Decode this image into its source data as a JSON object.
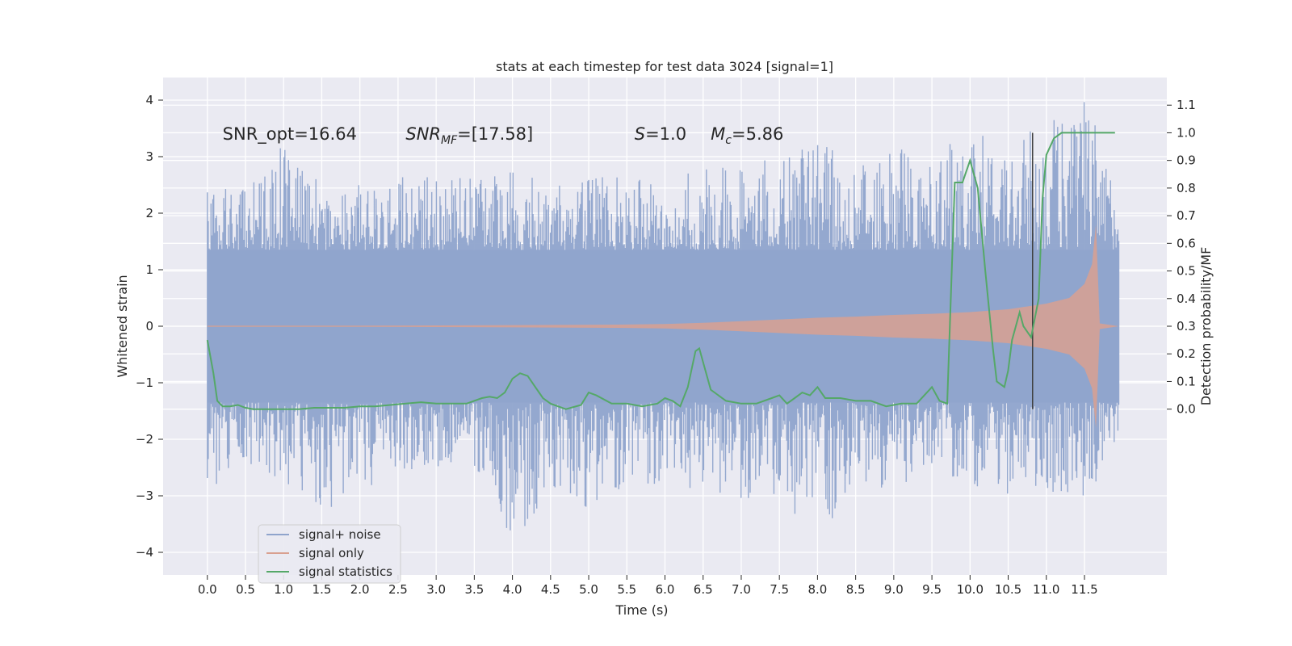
{
  "chart_data": {
    "type": "line",
    "title": "stats at each timestep for test data 3024 [signal=1]",
    "xlabel": "Time (s)",
    "ylabel_left": "Whitened strain",
    "ylabel_right": "Detection probability/MF",
    "xlim": [
      -0.58,
      12.58
    ],
    "ylim_left": [
      -4.4,
      4.4
    ],
    "ylim_right": [
      -0.6,
      1.2
    ],
    "x_ticks": [
      0.0,
      0.5,
      1.0,
      1.5,
      2.0,
      2.5,
      3.0,
      3.5,
      4.0,
      4.5,
      5.0,
      5.5,
      6.0,
      6.5,
      7.0,
      7.5,
      8.0,
      8.5,
      9.0,
      9.5,
      10.0,
      10.5,
      11.0,
      11.5
    ],
    "x_tick_labels": [
      "0.0",
      "0.5",
      "1.0",
      "1.5",
      "2.0",
      "2.5",
      "3.0",
      "3.5",
      "4.0",
      "4.5",
      "5.0",
      "5.5",
      "6.0",
      "6.5",
      "7.0",
      "7.5",
      "8.0",
      "8.5",
      "9.0",
      "9.5",
      "10.0",
      "10.5",
      "11.0",
      "11.5"
    ],
    "y_left_ticks": [
      4,
      3,
      2,
      1,
      0,
      -1,
      -2,
      -3,
      -4
    ],
    "y_left_tick_labels": [
      "4",
      "3",
      "2",
      "1",
      "0",
      "−1",
      "−2",
      "−3",
      "−4"
    ],
    "y_right_ticks": [
      1.1,
      1.0,
      0.9,
      0.8,
      0.7,
      0.6,
      0.5,
      0.4,
      0.3,
      0.2,
      0.1,
      0.0
    ],
    "y_right_tick_labels": [
      "1.1",
      "1.0",
      "0.9",
      "0.8",
      "0.7",
      "0.6",
      "0.5",
      "0.4",
      "0.3",
      "0.2",
      "0.1",
      "0.0"
    ],
    "annotations": [
      {
        "text": "SNR_opt=16.64",
        "x": 0.2,
        "y": 3.3
      },
      {
        "text": "SNR_MF=[17.58]",
        "x": 2.6,
        "y": 3.3
      },
      {
        "text": "S=1.0",
        "x": 5.6,
        "y": 3.3
      },
      {
        "text": "M_c=5.86",
        "x": 6.6,
        "y": 3.3
      }
    ],
    "vertical_marker": {
      "x": 10.82,
      "y_from": 0.0,
      "y_to": 1.0
    },
    "series": [
      {
        "name": "signal+ noise",
        "axis": "left",
        "color": "#8fa4cc",
        "x_start": 0.0,
        "x_end": 11.95,
        "core_band": [
          -1.35,
          1.35
        ],
        "envelope_x": [
          0.0,
          0.5,
          1.0,
          1.5,
          2.0,
          2.5,
          3.0,
          3.5,
          4.0,
          4.5,
          5.0,
          5.5,
          6.0,
          6.5,
          7.0,
          7.5,
          8.0,
          8.5,
          9.0,
          9.5,
          10.0,
          10.5,
          11.0,
          11.5,
          11.95
        ],
        "envelope_upper": [
          2.5,
          2.4,
          3.3,
          2.6,
          2.5,
          2.9,
          2.7,
          2.6,
          2.8,
          2.5,
          2.8,
          2.7,
          2.5,
          2.9,
          2.8,
          3.1,
          3.3,
          2.9,
          3.2,
          3.0,
          3.5,
          3.3,
          3.6,
          4.1,
          2.4
        ],
        "envelope_lower": [
          -2.9,
          -2.5,
          -2.8,
          -3.3,
          -3.0,
          -2.7,
          -2.5,
          -2.6,
          -3.8,
          -3.0,
          -3.3,
          -2.9,
          -2.8,
          -2.9,
          -3.1,
          -3.0,
          -3.8,
          -2.8,
          -2.9,
          -2.6,
          -2.8,
          -3.0,
          -2.9,
          -3.2,
          -2.0
        ]
      },
      {
        "name": "signal only",
        "axis": "left",
        "color": "#d9a090",
        "x": [
          0.0,
          2.0,
          4.0,
          5.5,
          6.0,
          6.5,
          7.0,
          7.5,
          8.0,
          8.5,
          9.0,
          9.5,
          10.0,
          10.5,
          11.0,
          11.3,
          11.5,
          11.6,
          11.65,
          11.7,
          11.95
        ],
        "amplitude": [
          0.01,
          0.01,
          0.02,
          0.03,
          0.04,
          0.06,
          0.09,
          0.12,
          0.15,
          0.17,
          0.2,
          0.22,
          0.25,
          0.3,
          0.4,
          0.5,
          0.75,
          1.1,
          1.8,
          0.05,
          0.0
        ]
      },
      {
        "name": "signal statistics",
        "axis": "right",
        "color": "#55a868",
        "x": [
          0.0,
          0.08,
          0.13,
          0.2,
          0.3,
          0.4,
          0.5,
          0.6,
          0.8,
          1.0,
          1.2,
          1.4,
          1.6,
          1.8,
          2.0,
          2.2,
          2.4,
          2.6,
          2.8,
          3.0,
          3.2,
          3.4,
          3.6,
          3.7,
          3.8,
          3.9,
          4.0,
          4.1,
          4.2,
          4.3,
          4.4,
          4.5,
          4.7,
          4.9,
          5.0,
          5.1,
          5.3,
          5.5,
          5.7,
          5.9,
          6.0,
          6.1,
          6.2,
          6.3,
          6.4,
          6.45,
          6.5,
          6.6,
          6.8,
          7.0,
          7.2,
          7.4,
          7.5,
          7.6,
          7.7,
          7.8,
          7.9,
          8.0,
          8.1,
          8.3,
          8.5,
          8.7,
          8.9,
          9.1,
          9.3,
          9.5,
          9.6,
          9.7,
          9.8,
          9.9,
          10.0,
          10.1,
          10.2,
          10.3,
          10.35,
          10.45,
          10.5,
          10.55,
          10.65,
          10.7,
          10.8,
          10.9,
          10.95,
          11.0,
          11.1,
          11.2,
          11.5,
          11.9
        ],
        "values": [
          0.25,
          0.13,
          0.03,
          0.01,
          0.01,
          0.015,
          0.005,
          0.0,
          0.0,
          0.0,
          0.0,
          0.005,
          0.005,
          0.005,
          0.01,
          0.01,
          0.015,
          0.02,
          0.025,
          0.02,
          0.02,
          0.02,
          0.04,
          0.045,
          0.04,
          0.06,
          0.11,
          0.13,
          0.12,
          0.08,
          0.04,
          0.02,
          0.0,
          0.015,
          0.06,
          0.05,
          0.02,
          0.02,
          0.01,
          0.02,
          0.04,
          0.03,
          0.01,
          0.08,
          0.21,
          0.22,
          0.17,
          0.07,
          0.03,
          0.02,
          0.02,
          0.04,
          0.05,
          0.02,
          0.04,
          0.06,
          0.05,
          0.08,
          0.04,
          0.04,
          0.03,
          0.03,
          0.01,
          0.02,
          0.02,
          0.08,
          0.03,
          0.02,
          0.82,
          0.82,
          0.9,
          0.8,
          0.5,
          0.22,
          0.1,
          0.08,
          0.14,
          0.25,
          0.35,
          0.3,
          0.26,
          0.4,
          0.76,
          0.92,
          0.98,
          1.0,
          1.0,
          1.0
        ]
      }
    ],
    "legend": {
      "placement": "lower-left",
      "entries": [
        "signal+ noise",
        "signal only",
        "signal statistics"
      ]
    }
  }
}
